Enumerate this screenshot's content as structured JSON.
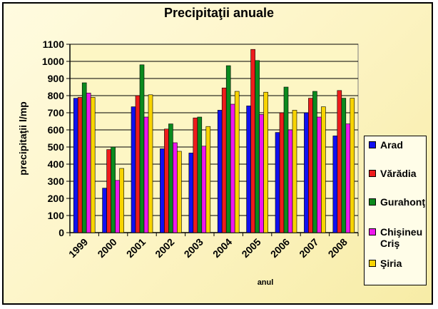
{
  "chart_data": {
    "type": "bar",
    "title": "Precipitaţii anuale",
    "xlabel": "anul",
    "ylabel": "precipitaţii l/mp",
    "ylim": [
      0,
      1100
    ],
    "yticks": [
      0,
      100,
      200,
      300,
      400,
      500,
      600,
      700,
      800,
      900,
      1000,
      1100
    ],
    "categories": [
      "1999",
      "2000",
      "2001",
      "2002",
      "2003",
      "2004",
      "2005",
      "2006",
      "2007",
      "2008"
    ],
    "series": [
      {
        "name": "Arad",
        "color": "#1010f0",
        "values": [
          785,
          260,
          735,
          490,
          465,
          715,
          740,
          585,
          700,
          565
        ]
      },
      {
        "name": "Vărădia",
        "color": "#ee1c1c",
        "values": [
          790,
          485,
          800,
          605,
          670,
          845,
          1070,
          700,
          785,
          830
        ]
      },
      {
        "name": "Gurahonţ",
        "color": "#0b8a1e",
        "values": [
          875,
          500,
          980,
          635,
          675,
          975,
          1005,
          850,
          825,
          785
        ]
      },
      {
        "name": "Chişineu Criş",
        "color": "#ee18ee",
        "values": [
          815,
          305,
          675,
          525,
          505,
          750,
          690,
          600,
          675,
          635
        ]
      },
      {
        "name": "Şiria",
        "color": "#f8d400",
        "values": [
          790,
          375,
          805,
          475,
          620,
          825,
          820,
          715,
          735,
          785
        ]
      }
    ],
    "legend": "right",
    "grid": true
  }
}
